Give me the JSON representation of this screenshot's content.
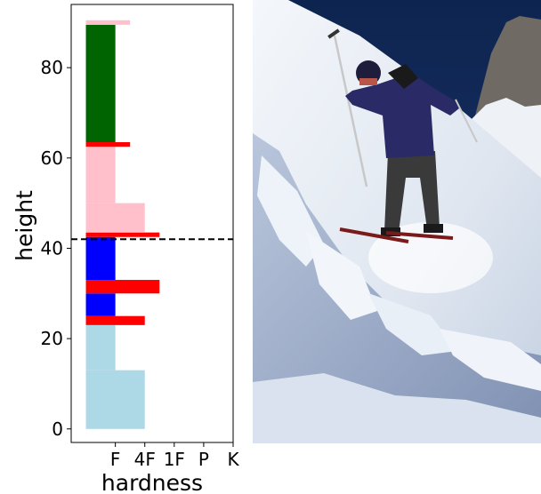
{
  "chart_data": {
    "type": "bar",
    "xlabel": "hardness",
    "ylabel": "height",
    "x_tick_labels": [
      "F",
      "4F",
      "1F",
      "P",
      "K"
    ],
    "y_ticks": [
      0,
      20,
      40,
      60,
      80
    ],
    "ylim": [
      -3,
      94
    ],
    "xlim": [
      -0.5,
      5.0
    ],
    "hardness_scale": {
      "F": 1,
      "4F": 2,
      "1F": 3,
      "P": 4,
      "K": 5
    },
    "grid": false,
    "legend": "none",
    "layers": [
      {
        "bottom": 0,
        "top": 13,
        "hardness": 2,
        "color": "#add8e6"
      },
      {
        "bottom": 13,
        "top": 23,
        "hardness": 1,
        "color": "#add8e6"
      },
      {
        "bottom": 23,
        "top": 25,
        "hardness": 2,
        "color": "#ff0000"
      },
      {
        "bottom": 25,
        "top": 30,
        "hardness": 1,
        "color": "#0000ff"
      },
      {
        "bottom": 30,
        "top": 33,
        "hardness": 2.5,
        "color": "#ff0000"
      },
      {
        "bottom": 33,
        "top": 42.5,
        "hardness": 1,
        "color": "#0000ff"
      },
      {
        "bottom": 42.5,
        "top": 43.5,
        "hardness": 2.5,
        "color": "#ff0000"
      },
      {
        "bottom": 43.5,
        "top": 50,
        "hardness": 2,
        "color": "#ffc0cb"
      },
      {
        "bottom": 50,
        "top": 62.5,
        "hardness": 1,
        "color": "#ffc0cb"
      },
      {
        "bottom": 62.5,
        "top": 63.5,
        "hardness": 1.5,
        "color": "#ff0000"
      },
      {
        "bottom": 63.5,
        "top": 89.5,
        "hardness": 1,
        "color": "#006400"
      },
      {
        "bottom": 89.5,
        "top": 90.5,
        "hardness": 1.5,
        "color": "#ffc0cb"
      }
    ],
    "reference_line": {
      "y": 42,
      "style": "dashed",
      "color": "#000000"
    }
  },
  "photo": {
    "sky_color": "#102a55",
    "snow_color": "#e6ecf4",
    "shadow_color": "#9aaac8",
    "jacket_color": "#2a2a66",
    "pants_color": "#3a3a3a"
  }
}
